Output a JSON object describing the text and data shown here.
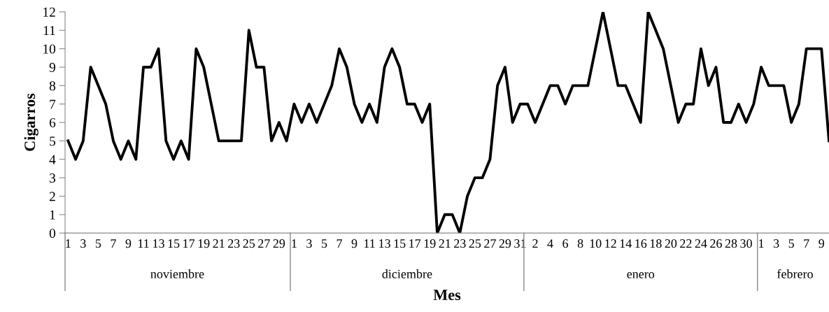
{
  "chart_data": {
    "type": "line",
    "xlabel": "Mes",
    "ylabel": "Cigarros",
    "categories": [
      "1",
      null,
      "3",
      null,
      "5",
      null,
      "7",
      null,
      "9",
      null,
      "11",
      null,
      "13",
      null,
      "15",
      null,
      "17",
      null,
      "19",
      null,
      "21",
      null,
      "23",
      null,
      "25",
      null,
      "27",
      null,
      "29",
      null,
      "1",
      null,
      "3",
      null,
      "5",
      null,
      "7",
      null,
      "9",
      null,
      "11",
      null,
      "13",
      null,
      "15",
      null,
      "17",
      null,
      "19",
      null,
      "21",
      null,
      "23",
      null,
      "25",
      null,
      "27",
      null,
      "29",
      null,
      "31",
      null,
      "2",
      null,
      "4",
      null,
      "6",
      null,
      "8",
      null,
      "10",
      null,
      "12",
      null,
      "14",
      null,
      "16",
      null,
      "18",
      null,
      "20",
      null,
      "22",
      null,
      "24",
      null,
      "26",
      null,
      "28",
      null,
      "30",
      null,
      "1",
      null,
      "3",
      null,
      "5",
      null,
      "7",
      null,
      "9",
      null
    ],
    "annotations": [
      "noviembre",
      "diciembre",
      "enero",
      "febrero"
    ],
    "series": [
      {
        "color": "#000000",
        "values": [
          5,
          4,
          5,
          9,
          8,
          7,
          5,
          4,
          5,
          4,
          9,
          9,
          10,
          5,
          4,
          5,
          4,
          10,
          9,
          7,
          5,
          5,
          5,
          5,
          11,
          9,
          9,
          5,
          6,
          5,
          7,
          6,
          7,
          6,
          7,
          8,
          10,
          9,
          7,
          6,
          7,
          6,
          9,
          10,
          9,
          7,
          7,
          6,
          7,
          0,
          1,
          1,
          0,
          2,
          3,
          3,
          4,
          8,
          9,
          6,
          7,
          7,
          6,
          7,
          8,
          8,
          7,
          8,
          8,
          8,
          10,
          12,
          10,
          8,
          8,
          7,
          6,
          12,
          11,
          10,
          8,
          6,
          7,
          7,
          10,
          8,
          9,
          6,
          6,
          7,
          6,
          7,
          9,
          8,
          8,
          8,
          6,
          7,
          10,
          10,
          10,
          5
        ]
      }
    ],
    "ylim": [
      0,
      12
    ],
    "yticks": [
      0,
      1,
      2,
      3,
      4,
      5,
      6,
      7,
      8,
      9,
      10,
      11,
      12
    ],
    "grid": false,
    "legend": false,
    "marker": "none",
    "line_style": "solid"
  }
}
